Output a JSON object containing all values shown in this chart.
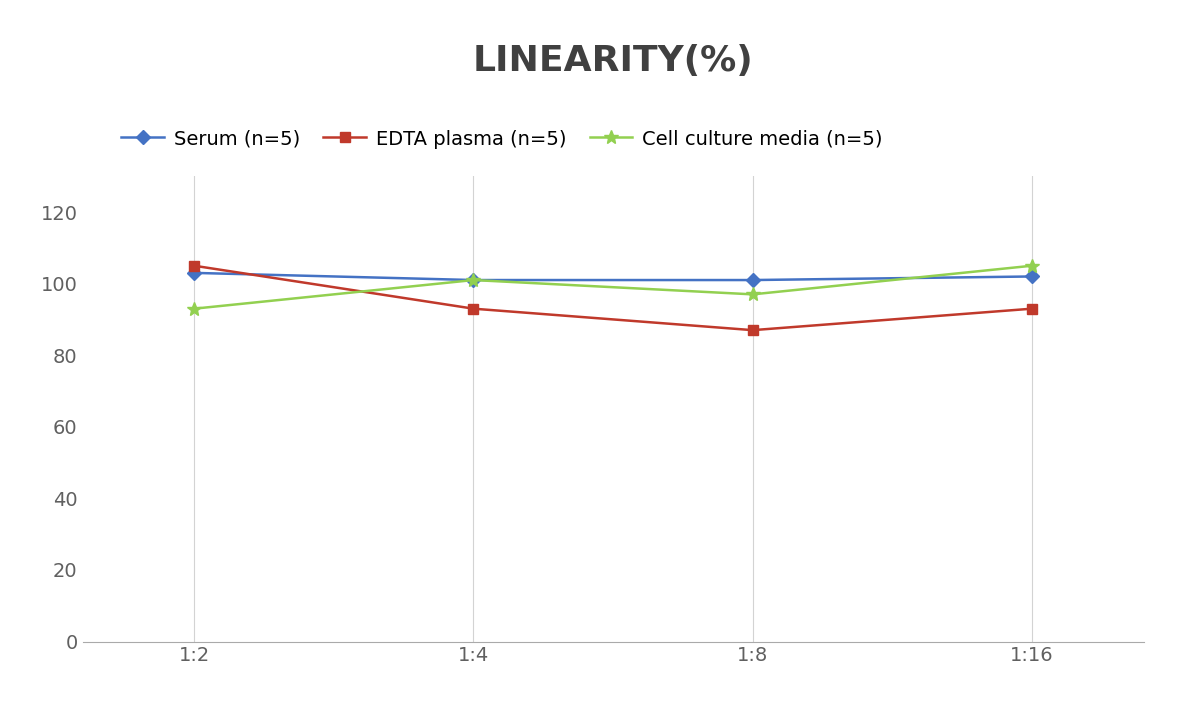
{
  "title": "LINEARITY(%)",
  "x_labels": [
    "1:2",
    "1:4",
    "1:8",
    "1:16"
  ],
  "x_positions": [
    0,
    1,
    2,
    3
  ],
  "series": [
    {
      "name": "Serum (n=5)",
      "values": [
        103,
        101,
        101,
        102
      ],
      "color": "#4472C4",
      "marker": "D",
      "markersize": 7,
      "linewidth": 1.8
    },
    {
      "name": "EDTA plasma (n=5)",
      "values": [
        105,
        93,
        87,
        93
      ],
      "color": "#C0392B",
      "marker": "s",
      "markersize": 7,
      "linewidth": 1.8
    },
    {
      "name": "Cell culture media (n=5)",
      "values": [
        93,
        101,
        97,
        105
      ],
      "color": "#92D050",
      "marker": "*",
      "markersize": 10,
      "linewidth": 1.8
    }
  ],
  "ylim": [
    0,
    130
  ],
  "yticks": [
    0,
    20,
    40,
    60,
    80,
    100,
    120
  ],
  "title_fontsize": 26,
  "tick_fontsize": 14,
  "legend_fontsize": 14,
  "background_color": "#ffffff",
  "grid_color": "#d3d3d3"
}
